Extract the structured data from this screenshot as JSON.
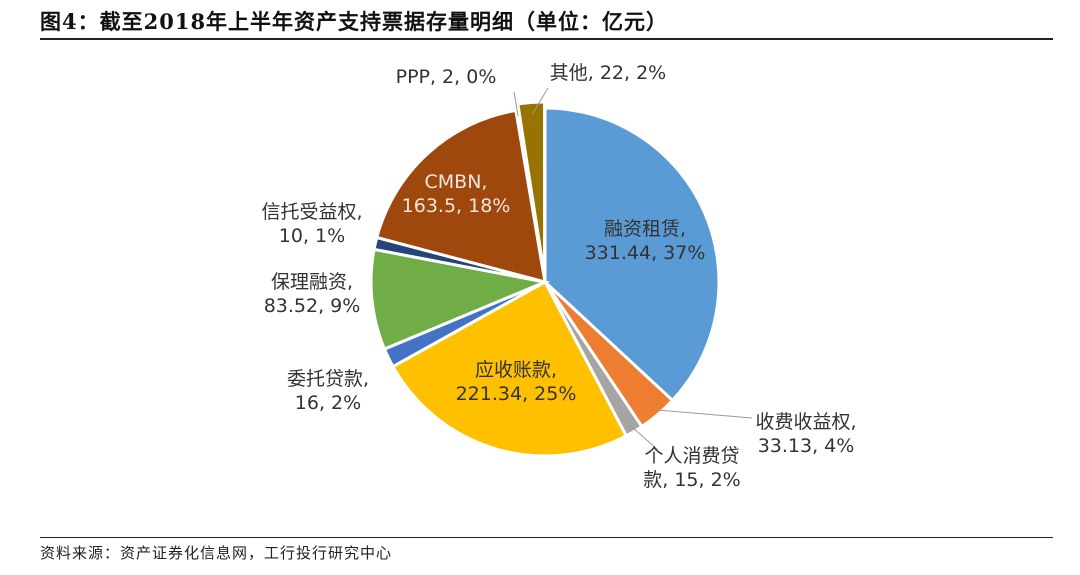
{
  "figure_title": "图4：截至2018年上半年资产支持票据存量明细（单位：亿元）",
  "source_note": "资料来源：资产证券化信息网，工行投行研究中心",
  "chart_data": {
    "type": "pie",
    "title": "",
    "slices": [
      {
        "label": "融资租赁",
        "value": 331.44,
        "percent": "37%",
        "label_text": [
          "融资租赁,",
          "331.44, 37%"
        ],
        "color": "#5B9BD5"
      },
      {
        "label": "收费收益权",
        "value": 33.13,
        "percent": "4%",
        "label_text": [
          "收费收益权,",
          "33.13, 4%"
        ],
        "color": "#ED7D31"
      },
      {
        "label": "个人消费贷款",
        "value": 15,
        "percent": "2%",
        "label_text": [
          "个人消费贷",
          "款, 15, 2%"
        ],
        "color": "#A5A5A5"
      },
      {
        "label": "应收账款",
        "value": 221.34,
        "percent": "25%",
        "label_text": [
          "应收账款,",
          "221.34, 25%"
        ],
        "color": "#FFC000"
      },
      {
        "label": "委托贷款",
        "value": 16,
        "percent": "2%",
        "label_text": [
          "委托贷款,",
          "16, 2%"
        ],
        "color": "#4472C4"
      },
      {
        "label": "保理融资",
        "value": 83.52,
        "percent": "9%",
        "label_text": [
          "保理融资,",
          "83.52, 9%"
        ],
        "color": "#70AD47"
      },
      {
        "label": "信托受益权",
        "value": 10,
        "percent": "1%",
        "label_text": [
          "信托受益权,",
          "10, 1%"
        ],
        "color": "#264478"
      },
      {
        "label": "CMBN",
        "value": 163.5,
        "percent": "18%",
        "label_text": [
          "CMBN,",
          "163.5, 18%"
        ],
        "color": "#9E480E"
      },
      {
        "label": "PPP",
        "value": 2,
        "percent": "0%",
        "label_text": [
          "PPP, 2, 0%"
        ],
        "color": "#636363"
      },
      {
        "label": "其他",
        "value": 22,
        "percent": "2%",
        "label_text": [
          "其他, 22, 2%"
        ],
        "color": "#997300"
      }
    ],
    "start_angle_deg": 0,
    "direction": "clockwise",
    "legend": "none"
  }
}
